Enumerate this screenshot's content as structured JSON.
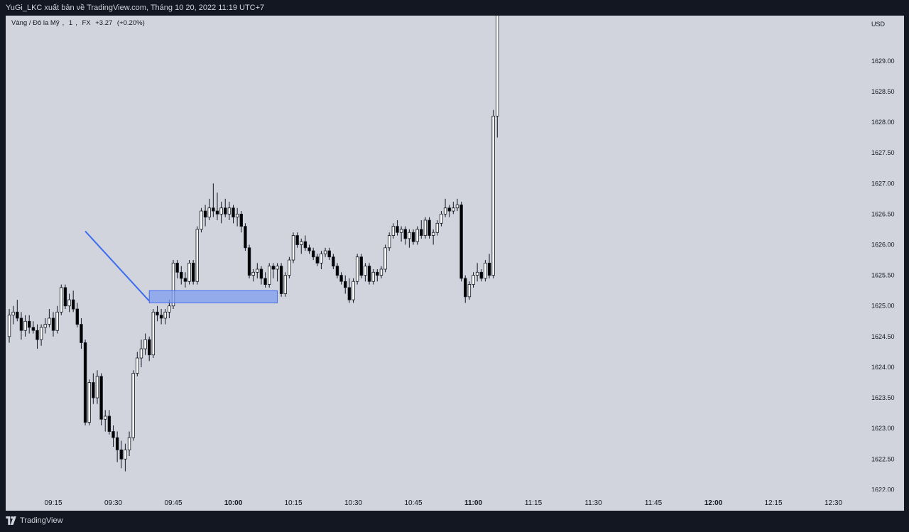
{
  "header": {
    "publish_text": "YuGi_LKC xuất bản về TradingView.com, Tháng 10 20, 2022 11:19 UTC+7"
  },
  "legend": {
    "symbol": "Vàng / Đô la Mỹ",
    "interval": "1",
    "exchange": "FX",
    "change": "+3.27",
    "change_pct": "(+0.20%)"
  },
  "footer": {
    "brand": "TradingView",
    "logo_icon": "tradingview-logo-icon"
  },
  "colors": {
    "background": "#d1d4dc",
    "frame": "#131722",
    "up_candle": "#ffffff",
    "down_candle": "#000000",
    "wick": "#131722",
    "zone_fill": "#7d9cf0",
    "zone_stroke": "#3d6bf0",
    "trendline": "#3d6bf0"
  },
  "chart_data": {
    "type": "candlestick",
    "currency": "USD",
    "y_ticks": [
      "1622.00",
      "1622.50",
      "1623.00",
      "1623.50",
      "1624.00",
      "1624.50",
      "1625.00",
      "1625.50",
      "1626.00",
      "1626.50",
      "1627.00",
      "1627.50",
      "1628.00",
      "1628.50",
      "1629.00"
    ],
    "ylim": [
      1621.97,
      1629.74
    ],
    "x_ticks": [
      {
        "label": "09:15",
        "minute": 0,
        "bold": false
      },
      {
        "label": "09:30",
        "minute": 15,
        "bold": false
      },
      {
        "label": "09:45",
        "minute": 30,
        "bold": false
      },
      {
        "label": "10:00",
        "minute": 45,
        "bold": true
      },
      {
        "label": "10:15",
        "minute": 60,
        "bold": false
      },
      {
        "label": "10:30",
        "minute": 75,
        "bold": false
      },
      {
        "label": "10:45",
        "minute": 90,
        "bold": false
      },
      {
        "label": "11:00",
        "minute": 105,
        "bold": true
      },
      {
        "label": "11:15",
        "minute": 120,
        "bold": false
      },
      {
        "label": "11:30",
        "minute": 135,
        "bold": false
      },
      {
        "label": "11:45",
        "minute": 150,
        "bold": false
      },
      {
        "label": "12:00",
        "minute": 165,
        "bold": true
      },
      {
        "label": "12:15",
        "minute": 180,
        "bold": false
      },
      {
        "label": "12:30",
        "minute": 195,
        "bold": false
      }
    ],
    "x_start": "09:15",
    "x_unit": "minute",
    "candles_start_minute": -11,
    "ohlc": [
      [
        1624.5,
        1624.95,
        1624.4,
        1624.85
      ],
      [
        1624.85,
        1625.0,
        1624.7,
        1624.9
      ],
      [
        1624.9,
        1625.1,
        1624.75,
        1624.8
      ],
      [
        1624.8,
        1624.9,
        1624.45,
        1624.6
      ],
      [
        1624.6,
        1624.85,
        1624.5,
        1624.75
      ],
      [
        1624.75,
        1624.85,
        1624.55,
        1624.65
      ],
      [
        1624.65,
        1624.75,
        1624.55,
        1624.6
      ],
      [
        1624.6,
        1624.7,
        1624.3,
        1624.45
      ],
      [
        1624.45,
        1624.7,
        1624.35,
        1624.65
      ],
      [
        1624.65,
        1624.8,
        1624.55,
        1624.7
      ],
      [
        1624.7,
        1624.95,
        1624.65,
        1624.8
      ],
      [
        1624.8,
        1624.9,
        1624.5,
        1624.6
      ],
      [
        1624.6,
        1625.0,
        1624.55,
        1624.9
      ],
      [
        1624.9,
        1625.35,
        1624.85,
        1625.3
      ],
      [
        1625.3,
        1625.35,
        1624.95,
        1625.0
      ],
      [
        1625.0,
        1625.2,
        1624.9,
        1625.1
      ],
      [
        1625.1,
        1625.25,
        1624.9,
        1624.95
      ],
      [
        1624.95,
        1625.05,
        1624.65,
        1624.7
      ],
      [
        1624.7,
        1624.8,
        1624.3,
        1624.4
      ],
      [
        1624.4,
        1624.45,
        1623.05,
        1623.1
      ],
      [
        1623.1,
        1623.8,
        1623.05,
        1623.75
      ],
      [
        1623.75,
        1623.9,
        1623.4,
        1623.5
      ],
      [
        1623.5,
        1623.95,
        1623.4,
        1623.85
      ],
      [
        1623.85,
        1623.9,
        1623.05,
        1623.15
      ],
      [
        1623.15,
        1623.3,
        1622.95,
        1623.2
      ],
      [
        1623.2,
        1623.3,
        1622.9,
        1622.95
      ],
      [
        1622.95,
        1623.05,
        1622.7,
        1622.85
      ],
      [
        1622.85,
        1622.95,
        1622.45,
        1622.65
      ],
      [
        1622.65,
        1622.8,
        1622.35,
        1622.5
      ],
      [
        1622.5,
        1622.75,
        1622.3,
        1622.65
      ],
      [
        1622.65,
        1622.95,
        1622.55,
        1622.85
      ],
      [
        1622.85,
        1623.95,
        1622.8,
        1623.9
      ],
      [
        1623.9,
        1624.25,
        1623.85,
        1624.15
      ],
      [
        1624.15,
        1624.45,
        1624.0,
        1624.3
      ],
      [
        1624.3,
        1624.55,
        1624.2,
        1624.45
      ],
      [
        1624.45,
        1624.5,
        1624.1,
        1624.2
      ],
      [
        1624.2,
        1624.95,
        1624.15,
        1624.9
      ],
      [
        1624.9,
        1625.0,
        1624.75,
        1624.85
      ],
      [
        1624.85,
        1624.95,
        1624.7,
        1624.8
      ],
      [
        1624.8,
        1624.95,
        1624.7,
        1624.9
      ],
      [
        1624.9,
        1625.1,
        1624.8,
        1625.0
      ],
      [
        1625.0,
        1625.75,
        1624.95,
        1625.7
      ],
      [
        1625.7,
        1625.75,
        1625.45,
        1625.55
      ],
      [
        1625.55,
        1625.65,
        1625.35,
        1625.45
      ],
      [
        1625.45,
        1625.55,
        1625.3,
        1625.4
      ],
      [
        1625.4,
        1625.75,
        1625.35,
        1625.7
      ],
      [
        1625.7,
        1625.75,
        1625.35,
        1625.4
      ],
      [
        1625.4,
        1626.3,
        1625.35,
        1626.25
      ],
      [
        1626.25,
        1626.6,
        1626.2,
        1626.55
      ],
      [
        1626.55,
        1626.65,
        1626.3,
        1626.45
      ],
      [
        1626.45,
        1626.75,
        1626.4,
        1626.6
      ],
      [
        1626.6,
        1627.0,
        1626.45,
        1626.55
      ],
      [
        1626.55,
        1626.85,
        1626.4,
        1626.5
      ],
      [
        1626.5,
        1626.7,
        1626.35,
        1626.6
      ],
      [
        1626.6,
        1626.75,
        1626.45,
        1626.5
      ],
      [
        1626.5,
        1626.7,
        1626.4,
        1626.6
      ],
      [
        1626.6,
        1626.65,
        1626.35,
        1626.45
      ],
      [
        1626.45,
        1626.6,
        1626.3,
        1626.5
      ],
      [
        1626.5,
        1626.55,
        1626.2,
        1626.3
      ],
      [
        1626.3,
        1626.35,
        1625.9,
        1625.95
      ],
      [
        1625.95,
        1626.0,
        1625.45,
        1625.5
      ],
      [
        1625.5,
        1625.6,
        1625.4,
        1625.55
      ],
      [
        1625.55,
        1625.7,
        1625.45,
        1625.6
      ],
      [
        1625.6,
        1625.65,
        1625.35,
        1625.45
      ],
      [
        1625.45,
        1625.55,
        1625.3,
        1625.35
      ],
      [
        1625.35,
        1625.7,
        1625.3,
        1625.65
      ],
      [
        1625.65,
        1625.7,
        1625.45,
        1625.6
      ],
      [
        1625.6,
        1625.7,
        1625.4,
        1625.65
      ],
      [
        1625.65,
        1625.7,
        1625.15,
        1625.2
      ],
      [
        1625.2,
        1625.55,
        1625.15,
        1625.5
      ],
      [
        1625.5,
        1625.8,
        1625.45,
        1625.75
      ],
      [
        1625.75,
        1626.2,
        1625.7,
        1626.15
      ],
      [
        1626.15,
        1626.2,
        1625.95,
        1626.0
      ],
      [
        1626.0,
        1626.1,
        1625.85,
        1626.05
      ],
      [
        1626.05,
        1626.15,
        1625.9,
        1625.95
      ],
      [
        1625.95,
        1626.0,
        1625.85,
        1625.9
      ],
      [
        1625.9,
        1625.95,
        1625.75,
        1625.8
      ],
      [
        1625.8,
        1625.85,
        1625.65,
        1625.7
      ],
      [
        1625.7,
        1625.9,
        1625.6,
        1625.85
      ],
      [
        1625.85,
        1625.95,
        1625.8,
        1625.9
      ],
      [
        1625.9,
        1625.95,
        1625.75,
        1625.8
      ],
      [
        1625.8,
        1625.85,
        1625.6,
        1625.65
      ],
      [
        1625.65,
        1625.7,
        1625.45,
        1625.5
      ],
      [
        1625.5,
        1625.55,
        1625.35,
        1625.4
      ],
      [
        1625.4,
        1625.5,
        1625.2,
        1625.3
      ],
      [
        1625.3,
        1625.45,
        1625.05,
        1625.1
      ],
      [
        1625.1,
        1625.45,
        1625.05,
        1625.4
      ],
      [
        1625.4,
        1625.85,
        1625.35,
        1625.8
      ],
      [
        1625.8,
        1625.85,
        1625.45,
        1625.5
      ],
      [
        1625.5,
        1625.7,
        1625.4,
        1625.65
      ],
      [
        1625.65,
        1625.7,
        1625.35,
        1625.4
      ],
      [
        1625.4,
        1625.6,
        1625.35,
        1625.55
      ],
      [
        1625.55,
        1625.6,
        1625.4,
        1625.5
      ],
      [
        1625.5,
        1625.65,
        1625.45,
        1625.6
      ],
      [
        1625.6,
        1626.0,
        1625.55,
        1625.95
      ],
      [
        1625.95,
        1626.2,
        1625.9,
        1626.15
      ],
      [
        1626.15,
        1626.35,
        1626.1,
        1626.3
      ],
      [
        1626.3,
        1626.4,
        1626.15,
        1626.2
      ],
      [
        1626.2,
        1626.3,
        1626.05,
        1626.25
      ],
      [
        1626.25,
        1626.3,
        1626.0,
        1626.1
      ],
      [
        1626.1,
        1626.25,
        1625.95,
        1626.2
      ],
      [
        1626.2,
        1626.25,
        1626.0,
        1626.05
      ],
      [
        1626.05,
        1626.3,
        1626.0,
        1626.25
      ],
      [
        1626.25,
        1626.4,
        1626.1,
        1626.15
      ],
      [
        1626.15,
        1626.45,
        1626.1,
        1626.4
      ],
      [
        1626.4,
        1626.45,
        1626.1,
        1626.15
      ],
      [
        1626.15,
        1626.25,
        1626.0,
        1626.2
      ],
      [
        1626.2,
        1626.4,
        1626.15,
        1626.35
      ],
      [
        1626.35,
        1626.55,
        1626.3,
        1626.5
      ],
      [
        1626.5,
        1626.75,
        1626.45,
        1626.6
      ],
      [
        1626.6,
        1626.65,
        1626.45,
        1626.55
      ],
      [
        1626.55,
        1626.7,
        1626.5,
        1626.6
      ],
      [
        1626.6,
        1626.75,
        1626.55,
        1626.65
      ],
      [
        1626.65,
        1626.7,
        1625.4,
        1625.45
      ],
      [
        1625.45,
        1625.5,
        1625.05,
        1625.15
      ],
      [
        1625.15,
        1625.4,
        1625.1,
        1625.35
      ],
      [
        1625.35,
        1625.55,
        1625.3,
        1625.5
      ],
      [
        1625.5,
        1625.7,
        1625.4,
        1625.55
      ],
      [
        1625.55,
        1625.6,
        1625.4,
        1625.45
      ],
      [
        1625.45,
        1625.75,
        1625.4,
        1625.7
      ],
      [
        1625.7,
        1625.85,
        1625.45,
        1625.5
      ],
      [
        1625.5,
        1628.2,
        1625.45,
        1628.1
      ],
      [
        1628.1,
        1629.8,
        1627.75,
        1629.8
      ]
    ],
    "annotations": {
      "demand_zone": {
        "start_minute": 24,
        "end_minute": 56,
        "low": 1625.05,
        "high": 1625.25
      },
      "trendline": {
        "from": {
          "minute": 8,
          "price": 1626.22
        },
        "to": {
          "minute": 24,
          "price": 1625.08
        }
      }
    }
  }
}
